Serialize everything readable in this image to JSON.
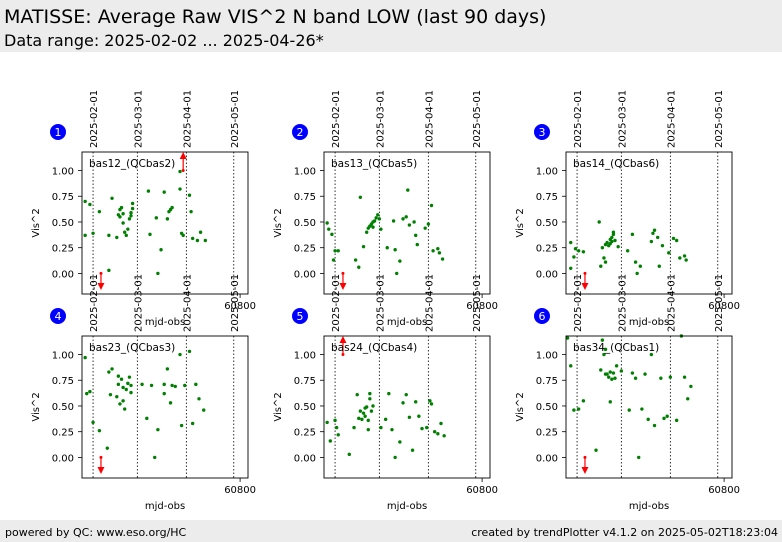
{
  "header": {
    "title": "MATISSE: Average Raw VIS^2 N band LOW (last 90 days)",
    "subtitle": "Data range: 2025-02-02 ... 2025-04-26*"
  },
  "footer": {
    "left": "powered by QC: www.eso.org/HC",
    "right": "created by trendPlotter v4.1.2 on 2025-05-02T18:23:04"
  },
  "colors": {
    "points": "#008000",
    "outlier": "#ff0000",
    "badge": "#0000ff",
    "header_bg": "#ececec"
  },
  "chart_data": [
    {
      "type": "scatter",
      "panel": "1",
      "label": "bas12_(QCbas2)",
      "xlabel": "mjd-obs",
      "ylabel": "Vis^2",
      "xlim": [
        60700,
        60805
      ],
      "ylim": [
        -0.2,
        1.18
      ],
      "xticks": [
        60800
      ],
      "yticks": [
        0.0,
        0.25,
        0.5,
        0.75,
        1.0
      ],
      "date_markers": [
        {
          "label": "2025-02-01",
          "x": 60707
        },
        {
          "label": "2025-03-01",
          "x": 60735
        },
        {
          "label": "2025-04-01",
          "x": 60766
        },
        {
          "label": "2025-05-01",
          "x": 60796
        }
      ],
      "points": [
        [
          60702,
          0.7
        ],
        [
          60702,
          0.37
        ],
        [
          60705,
          0.67
        ],
        [
          60707,
          0.39
        ],
        [
          60711,
          0.6
        ],
        [
          60717,
          0.03
        ],
        [
          60717,
          0.37
        ],
        [
          60719,
          0.73
        ],
        [
          60722,
          0.35
        ],
        [
          60723,
          0.57
        ],
        [
          60724,
          0.55
        ],
        [
          60724,
          0.62
        ],
        [
          60725,
          0.64
        ],
        [
          60726,
          0.49
        ],
        [
          60726,
          0.58
        ],
        [
          60727,
          0.4
        ],
        [
          60728,
          0.37
        ],
        [
          60729,
          0.43
        ],
        [
          60730,
          0.53
        ],
        [
          60731,
          0.56
        ],
        [
          60731,
          0.59
        ],
        [
          60732,
          0.63
        ],
        [
          60732,
          0.68
        ],
        [
          60742,
          0.8
        ],
        [
          60743,
          0.38
        ],
        [
          60747,
          0.54
        ],
        [
          60748,
          0.0
        ],
        [
          60750,
          0.23
        ],
        [
          60752,
          0.79
        ],
        [
          60754,
          0.53
        ],
        [
          60755,
          0.6
        ],
        [
          60756,
          0.62
        ],
        [
          60757,
          0.64
        ],
        [
          60762,
          0.99
        ],
        [
          60762,
          0.82
        ],
        [
          60763,
          0.39
        ],
        [
          60764,
          0.37
        ],
        [
          60768,
          0.76
        ],
        [
          60769,
          0.6
        ],
        [
          60770,
          0.34
        ],
        [
          60773,
          0.32
        ],
        [
          60775,
          0.4
        ],
        [
          60778,
          0.32
        ]
      ],
      "arrows": [
        {
          "x": 60712,
          "dir": "down"
        },
        {
          "x": 60764,
          "dir": "up"
        }
      ]
    },
    {
      "type": "scatter",
      "panel": "2",
      "label": "bas13_(QCbas5)",
      "xlabel": "mjd-obs",
      "ylabel": "Vis^2",
      "xlim": [
        60700,
        60805
      ],
      "ylim": [
        -0.2,
        1.18
      ],
      "xticks": [
        60800
      ],
      "yticks": [
        0.0,
        0.25,
        0.5,
        0.75,
        1.0
      ],
      "date_markers": [
        {
          "label": "2025-02-01",
          "x": 60707
        },
        {
          "label": "2025-03-01",
          "x": 60735
        },
        {
          "label": "2025-04-01",
          "x": 60766
        },
        {
          "label": "2025-05-01",
          "x": 60796
        }
      ],
      "points": [
        [
          60702,
          0.49
        ],
        [
          60703,
          0.43
        ],
        [
          60705,
          0.38
        ],
        [
          60706,
          0.13
        ],
        [
          60707,
          0.22
        ],
        [
          60709,
          0.22
        ],
        [
          60720,
          0.13
        ],
        [
          60722,
          0.06
        ],
        [
          60723,
          0.74
        ],
        [
          60725,
          0.26
        ],
        [
          60727,
          0.4
        ],
        [
          60728,
          0.44
        ],
        [
          60729,
          0.46
        ],
        [
          60730,
          0.48
        ],
        [
          60731,
          0.5
        ],
        [
          60731,
          0.45
        ],
        [
          60732,
          0.51
        ],
        [
          60733,
          0.54
        ],
        [
          60734,
          0.57
        ],
        [
          60735,
          0.53
        ],
        [
          60736,
          0.43
        ],
        [
          60740,
          0.25
        ],
        [
          60744,
          0.51
        ],
        [
          60745,
          0.23
        ],
        [
          60746,
          0.0
        ],
        [
          60748,
          0.12
        ],
        [
          60750,
          0.53
        ],
        [
          60752,
          0.55
        ],
        [
          60753,
          0.81
        ],
        [
          60754,
          0.47
        ],
        [
          60757,
          0.5
        ],
        [
          60758,
          0.37
        ],
        [
          60759,
          0.28
        ],
        [
          60764,
          0.44
        ],
        [
          60766,
          0.48
        ],
        [
          60768,
          0.66
        ],
        [
          60769,
          0.22
        ],
        [
          60772,
          0.24
        ],
        [
          60773,
          0.2
        ],
        [
          60775,
          0.14
        ]
      ],
      "arrows": [
        {
          "x": 60712,
          "dir": "down"
        }
      ]
    },
    {
      "type": "scatter",
      "panel": "3",
      "label": "bas14_(QCbas6)",
      "xlabel": "mjd-obs",
      "ylabel": "Vis^2",
      "xlim": [
        60700,
        60805
      ],
      "ylim": [
        -0.2,
        1.18
      ],
      "xticks": [
        60800
      ],
      "yticks": [
        0.0,
        0.25,
        0.5,
        0.75,
        1.0
      ],
      "date_markers": [
        {
          "label": "2025-02-01",
          "x": 60707
        },
        {
          "label": "2025-03-01",
          "x": 60735
        },
        {
          "label": "2025-04-01",
          "x": 60766
        },
        {
          "label": "2025-05-01",
          "x": 60796
        }
      ],
      "points": [
        [
          60703,
          0.3
        ],
        [
          60703,
          0.05
        ],
        [
          60705,
          0.16
        ],
        [
          60706,
          0.24
        ],
        [
          60708,
          0.22
        ],
        [
          60711,
          0.21
        ],
        [
          60721,
          0.5
        ],
        [
          60722,
          0.07
        ],
        [
          60723,
          0.25
        ],
        [
          60724,
          0.15
        ],
        [
          60725,
          0.11
        ],
        [
          60725,
          0.28
        ],
        [
          60726,
          0.3
        ],
        [
          60727,
          0.27
        ],
        [
          60728,
          0.33
        ],
        [
          60728,
          0.29
        ],
        [
          60729,
          0.35
        ],
        [
          60729,
          0.31
        ],
        [
          60730,
          0.38
        ],
        [
          60730,
          0.4
        ],
        [
          60731,
          0.32
        ],
        [
          60733,
          0.26
        ],
        [
          60739,
          0.22
        ],
        [
          60742,
          0.38
        ],
        [
          60744,
          0.11
        ],
        [
          60745,
          0.0
        ],
        [
          60747,
          0.07
        ],
        [
          60754,
          0.31
        ],
        [
          60755,
          0.39
        ],
        [
          60756,
          0.42
        ],
        [
          60758,
          0.35
        ],
        [
          60759,
          0.07
        ],
        [
          60761,
          0.27
        ],
        [
          60765,
          0.2
        ],
        [
          60768,
          0.34
        ],
        [
          60770,
          0.32
        ],
        [
          60772,
          0.15
        ],
        [
          60775,
          0.17
        ],
        [
          60776,
          0.13
        ]
      ],
      "arrows": [
        {
          "x": 60712,
          "dir": "down"
        }
      ]
    },
    {
      "type": "scatter",
      "panel": "4",
      "label": "bas23_(QCbas3)",
      "xlabel": "mjd-obs",
      "ylabel": "Vis^2",
      "xlim": [
        60700,
        60805
      ],
      "ylim": [
        -0.2,
        1.18
      ],
      "xticks": [
        60800
      ],
      "yticks": [
        0.0,
        0.25,
        0.5,
        0.75,
        1.0
      ],
      "date_markers": [
        {
          "label": "2025-02-01",
          "x": 60707
        },
        {
          "label": "2025-03-01",
          "x": 60735
        },
        {
          "label": "2025-04-01",
          "x": 60766
        },
        {
          "label": "2025-05-01",
          "x": 60796
        }
      ],
      "points": [
        [
          60702,
          0.97
        ],
        [
          60703,
          0.62
        ],
        [
          60705,
          0.64
        ],
        [
          60707,
          0.34
        ],
        [
          60711,
          0.26
        ],
        [
          60716,
          0.09
        ],
        [
          60717,
          0.83
        ],
        [
          60718,
          0.61
        ],
        [
          60719,
          0.86
        ],
        [
          60722,
          0.59
        ],
        [
          60723,
          0.71
        ],
        [
          60723,
          0.79
        ],
        [
          60724,
          0.52
        ],
        [
          60725,
          0.76
        ],
        [
          60726,
          0.68
        ],
        [
          60726,
          0.55
        ],
        [
          60727,
          0.47
        ],
        [
          60728,
          0.66
        ],
        [
          60729,
          0.72
        ],
        [
          60730,
          0.78
        ],
        [
          60731,
          0.7
        ],
        [
          60731,
          0.63
        ],
        [
          60738,
          0.71
        ],
        [
          60741,
          0.38
        ],
        [
          60744,
          0.7
        ],
        [
          60746,
          0.0
        ],
        [
          60748,
          0.27
        ],
        [
          60752,
          0.71
        ],
        [
          60752,
          0.62
        ],
        [
          60754,
          0.86
        ],
        [
          60756,
          0.53
        ],
        [
          60757,
          0.7
        ],
        [
          60759,
          0.69
        ],
        [
          60762,
          1.0
        ],
        [
          60763,
          0.31
        ],
        [
          60765,
          0.7
        ],
        [
          60768,
          1.03
        ],
        [
          60770,
          0.33
        ],
        [
          60772,
          0.71
        ],
        [
          60774,
          0.57
        ],
        [
          60777,
          0.46
        ]
      ],
      "arrows": [
        {
          "x": 60712,
          "dir": "down"
        }
      ]
    },
    {
      "type": "scatter",
      "panel": "5",
      "label": "bas24_(QCbas4)",
      "xlabel": "mjd-obs",
      "ylabel": "Vis^2",
      "xlim": [
        60700,
        60805
      ],
      "ylim": [
        -0.2,
        1.18
      ],
      "xticks": [
        60800
      ],
      "yticks": [
        0.0,
        0.25,
        0.5,
        0.75,
        1.0
      ],
      "date_markers": [
        {
          "label": "2025-02-01",
          "x": 60707
        },
        {
          "label": "2025-03-01",
          "x": 60735
        },
        {
          "label": "2025-04-01",
          "x": 60766
        },
        {
          "label": "2025-05-01",
          "x": 60796
        }
      ],
      "points": [
        [
          60702,
          0.34
        ],
        [
          60704,
          0.16
        ],
        [
          60707,
          0.36
        ],
        [
          60708,
          0.29
        ],
        [
          60709,
          0.22
        ],
        [
          60716,
          0.03
        ],
        [
          60719,
          0.29
        ],
        [
          60721,
          0.61
        ],
        [
          60722,
          0.38
        ],
        [
          60723,
          0.45
        ],
        [
          60724,
          0.37
        ],
        [
          60725,
          0.43
        ],
        [
          60726,
          0.4
        ],
        [
          60726,
          0.48
        ],
        [
          60727,
          0.49
        ],
        [
          60728,
          0.27
        ],
        [
          60728,
          0.36
        ],
        [
          60729,
          0.57
        ],
        [
          60729,
          0.62
        ],
        [
          60730,
          0.45
        ],
        [
          60731,
          0.5
        ],
        [
          60736,
          0.29
        ],
        [
          60739,
          0.37
        ],
        [
          60741,
          0.62
        ],
        [
          60743,
          0.27
        ],
        [
          60745,
          0.0
        ],
        [
          60748,
          0.15
        ],
        [
          60750,
          0.53
        ],
        [
          60752,
          0.61
        ],
        [
          60754,
          0.39
        ],
        [
          60756,
          0.07
        ],
        [
          60758,
          0.54
        ],
        [
          60760,
          0.4
        ],
        [
          60762,
          0.28
        ],
        [
          60765,
          0.29
        ],
        [
          60767,
          0.55
        ],
        [
          60768,
          0.52
        ],
        [
          60770,
          0.25
        ],
        [
          60772,
          0.23
        ],
        [
          60774,
          0.33
        ],
        [
          60776,
          0.21
        ]
      ],
      "arrows": [
        {
          "x": 60712,
          "dir": "up"
        }
      ]
    },
    {
      "type": "scatter",
      "panel": "6",
      "label": "bas34_(QCbas1)",
      "xlabel": "mjd-obs",
      "ylabel": "Vis^2",
      "xlim": [
        60700,
        60805
      ],
      "ylim": [
        -0.2,
        1.18
      ],
      "xticks": [
        60800
      ],
      "yticks": [
        0.0,
        0.25,
        0.5,
        0.75,
        1.0
      ],
      "date_markers": [
        {
          "label": "2025-02-01",
          "x": 60707
        },
        {
          "label": "2025-03-01",
          "x": 60735
        },
        {
          "label": "2025-04-01",
          "x": 60766
        },
        {
          "label": "2025-05-01",
          "x": 60796
        }
      ],
      "points": [
        [
          60701,
          1.16
        ],
        [
          60703,
          0.89
        ],
        [
          60705,
          0.46
        ],
        [
          60708,
          0.47
        ],
        [
          60711,
          0.55
        ],
        [
          60719,
          0.07
        ],
        [
          60722,
          0.85
        ],
        [
          60723,
          1.14
        ],
        [
          60724,
          1.0
        ],
        [
          60725,
          0.81
        ],
        [
          60725,
          1.05
        ],
        [
          60726,
          0.81
        ],
        [
          60727,
          0.78
        ],
        [
          60728,
          0.83
        ],
        [
          60728,
          0.54
        ],
        [
          60729,
          0.76
        ],
        [
          60730,
          0.82
        ],
        [
          60731,
          0.77
        ],
        [
          60732,
          0.89
        ],
        [
          60735,
          0.84
        ],
        [
          60740,
          0.46
        ],
        [
          60742,
          0.82
        ],
        [
          60744,
          0.77
        ],
        [
          60746,
          0.0
        ],
        [
          60748,
          0.47
        ],
        [
          60750,
          0.81
        ],
        [
          60752,
          0.37
        ],
        [
          60754,
          1.0
        ],
        [
          60756,
          0.31
        ],
        [
          60760,
          0.77
        ],
        [
          60762,
          0.38
        ],
        [
          60764,
          0.4
        ],
        [
          60766,
          0.78
        ],
        [
          60770,
          0.36
        ],
        [
          60773,
          1.18
        ],
        [
          60775,
          0.78
        ],
        [
          60777,
          0.57
        ],
        [
          60779,
          0.69
        ]
      ],
      "arrows": [
        {
          "x": 60712,
          "dir": "down"
        }
      ]
    }
  ]
}
